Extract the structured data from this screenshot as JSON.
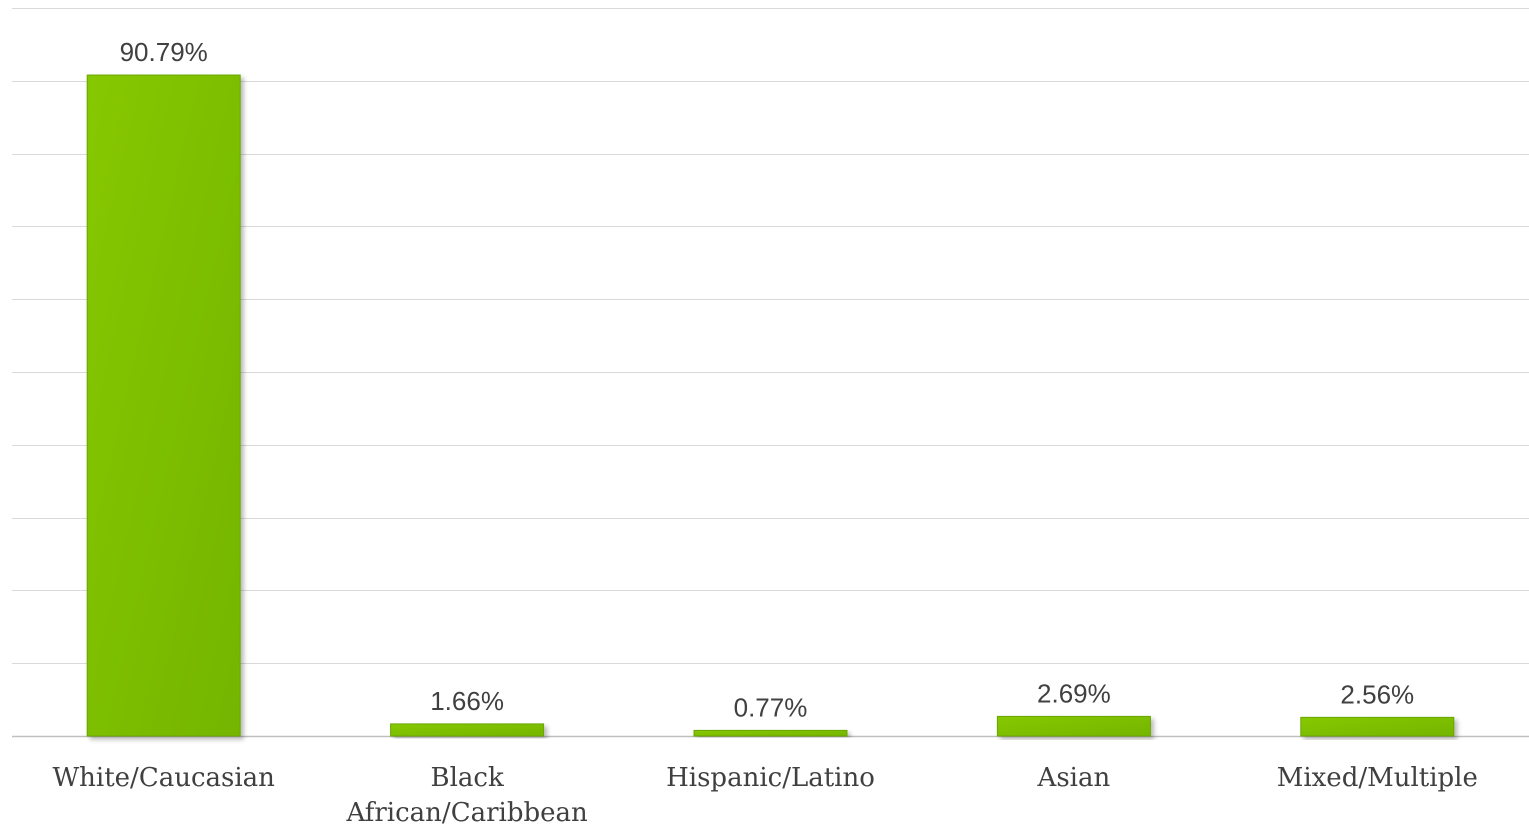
{
  "chart_data": {
    "type": "bar",
    "title": "",
    "xlabel": "",
    "ylabel": "",
    "categories": [
      [
        "White/Caucasian"
      ],
      [
        "Black",
        "African/Caribbean"
      ],
      [
        "Hispanic/Latino"
      ],
      [
        "Asian"
      ],
      [
        "Mixed/Multiple"
      ]
    ],
    "values": [
      90.79,
      1.66,
      0.77,
      2.69,
      2.56
    ],
    "value_labels": [
      "90.79%",
      "1.66%",
      "0.77%",
      "2.69%",
      "2.56%"
    ],
    "ylim": [
      0,
      100
    ],
    "gridlines": true,
    "y_tick_labels_shown": false,
    "legend": "none",
    "colors": {
      "bar": "#7dc000",
      "bar_edge": "#6aa600",
      "grid": "#d9d9d9",
      "axis": "#bfbfbf",
      "text": "#404040"
    }
  }
}
